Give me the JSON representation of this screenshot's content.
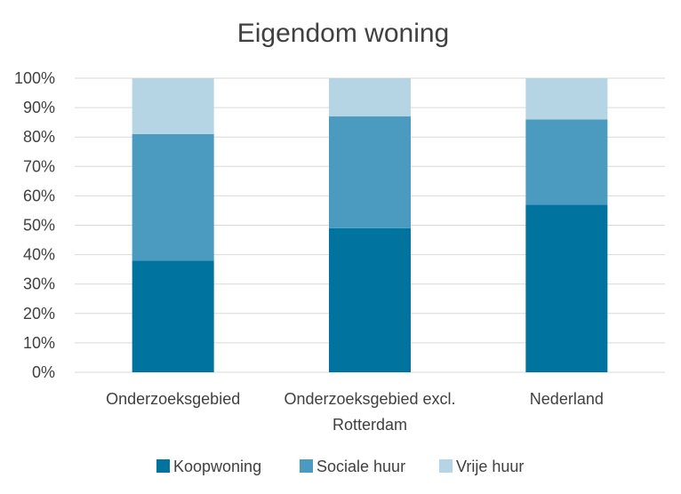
{
  "chart_data": {
    "type": "bar",
    "stacked": true,
    "percent_stacked": true,
    "title": "Eigendom woning",
    "xlabel": "",
    "ylabel": "",
    "categories": [
      "Onderzoeksgebied",
      "Onderzoeksgebied excl. Rotterdam",
      "Nederland"
    ],
    "category_lines": [
      [
        "Onderzoeksgebied"
      ],
      [
        "Onderzoeksgebied excl.",
        "Rotterdam"
      ],
      [
        "Nederland"
      ]
    ],
    "series": [
      {
        "name": "Koopwoning",
        "color": "#00739E",
        "values": [
          38,
          49,
          57
        ]
      },
      {
        "name": "Sociale huur",
        "color": "#4A9BBF",
        "values": [
          43,
          38,
          29
        ]
      },
      {
        "name": "Vrije huur",
        "color": "#B6D5E4",
        "values": [
          19,
          13,
          14
        ]
      }
    ],
    "ylim": [
      0,
      100
    ],
    "yticks": [
      "0%",
      "10%",
      "20%",
      "30%",
      "40%",
      "50%",
      "60%",
      "70%",
      "80%",
      "90%",
      "100%"
    ],
    "grid": true,
    "legend_position": "bottom"
  }
}
